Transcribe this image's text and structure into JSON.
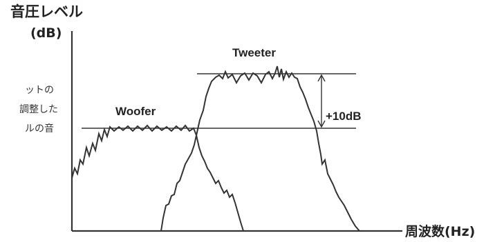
{
  "y_axis": {
    "title": "音圧レベル",
    "unit": "(dB)"
  },
  "x_axis": {
    "title": "周波数(Hz)"
  },
  "curves": {
    "woofer": {
      "label": "Woofer"
    },
    "tweeter": {
      "label": "Tweeter"
    }
  },
  "level_difference": {
    "label": "+10dB"
  },
  "side_note": {
    "lines": [
      "ットの",
      "調整した",
      "ルの音"
    ]
  },
  "colors": {
    "ink": "#333333",
    "text": "#222222"
  }
}
